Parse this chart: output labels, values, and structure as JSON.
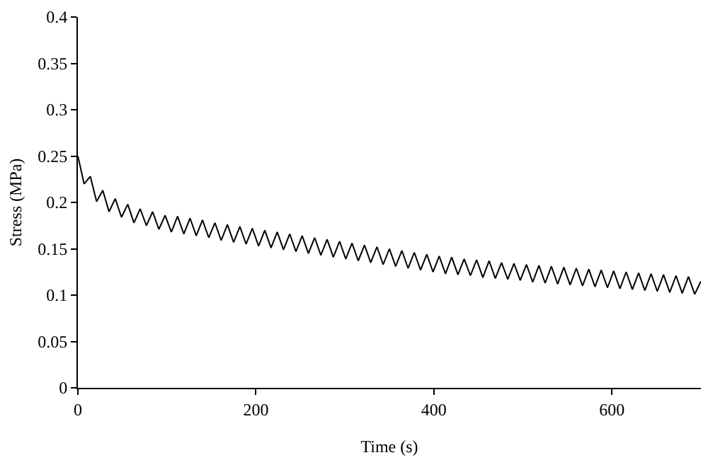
{
  "chart_data": {
    "type": "line",
    "xlabel": "Time (s)",
    "ylabel": "Stress (MPa)",
    "xlim": [
      0,
      700
    ],
    "xticks": [
      0,
      200,
      400,
      600
    ],
    "ylim": [
      0,
      0.4
    ],
    "yticks": [
      0,
      0.05,
      0.1,
      0.15,
      0.2,
      0.25,
      0.3,
      0.35,
      0.4
    ],
    "marker": "none",
    "line_style": "solid",
    "series": [
      {
        "color": "#000000",
        "x": [
          0,
          7,
          14,
          21,
          28,
          35,
          42,
          49,
          56,
          63,
          70,
          77,
          84,
          91,
          98,
          105,
          112,
          119,
          126,
          133,
          140,
          147,
          154,
          161,
          168,
          175,
          182,
          189,
          196,
          203,
          210,
          217,
          224,
          231,
          238,
          245,
          252,
          259,
          266,
          273,
          280,
          287,
          294,
          301,
          308,
          315,
          322,
          329,
          336,
          343,
          350,
          357,
          364,
          371,
          378,
          385,
          392,
          399,
          406,
          413,
          420,
          427,
          434,
          441,
          448,
          455,
          462,
          469,
          476,
          483,
          490,
          497,
          504,
          511,
          518,
          525,
          532,
          539,
          546,
          553,
          560,
          567,
          574,
          581,
          588,
          595,
          602,
          609,
          616,
          623,
          630,
          637,
          644,
          651,
          658,
          665,
          672,
          679,
          686,
          693,
          700
        ],
        "values": [
          0.25,
          0.22,
          0.228,
          0.201,
          0.213,
          0.19,
          0.204,
          0.184,
          0.198,
          0.178,
          0.193,
          0.175,
          0.19,
          0.171,
          0.186,
          0.168,
          0.185,
          0.166,
          0.183,
          0.164,
          0.181,
          0.162,
          0.178,
          0.159,
          0.176,
          0.157,
          0.174,
          0.155,
          0.172,
          0.153,
          0.17,
          0.151,
          0.168,
          0.149,
          0.166,
          0.147,
          0.164,
          0.145,
          0.162,
          0.143,
          0.16,
          0.141,
          0.158,
          0.139,
          0.156,
          0.137,
          0.154,
          0.135,
          0.152,
          0.133,
          0.15,
          0.131,
          0.148,
          0.129,
          0.146,
          0.127,
          0.144,
          0.125,
          0.142,
          0.123,
          0.141,
          0.122,
          0.139,
          0.121,
          0.138,
          0.119,
          0.137,
          0.118,
          0.135,
          0.117,
          0.134,
          0.116,
          0.133,
          0.114,
          0.132,
          0.113,
          0.131,
          0.112,
          0.13,
          0.111,
          0.129,
          0.11,
          0.128,
          0.109,
          0.127,
          0.108,
          0.126,
          0.107,
          0.125,
          0.106,
          0.124,
          0.105,
          0.123,
          0.104,
          0.122,
          0.103,
          0.121,
          0.102,
          0.12,
          0.101,
          0.115
        ]
      }
    ]
  }
}
